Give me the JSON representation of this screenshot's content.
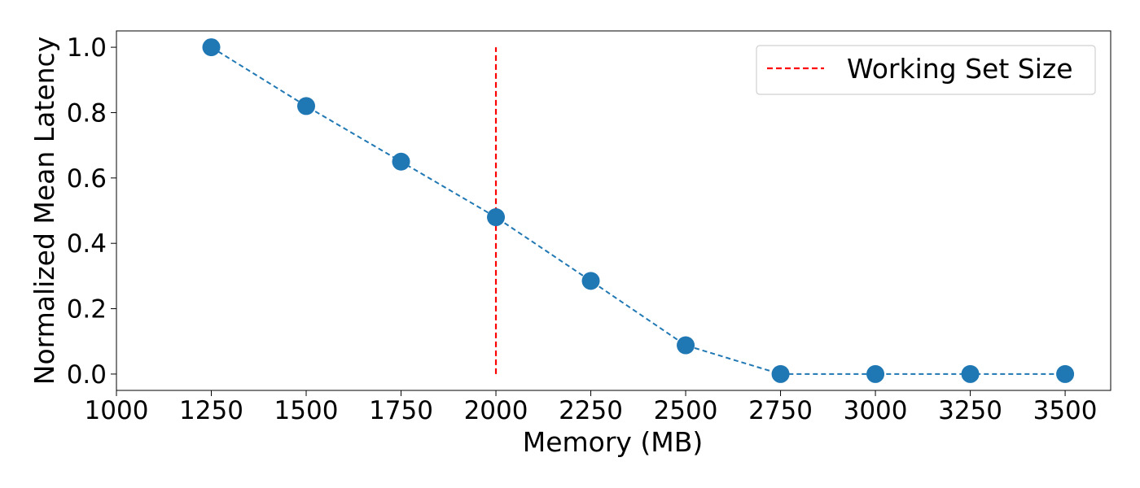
{
  "chart_data": {
    "type": "line",
    "title": "",
    "xlabel": "Memory (MB)",
    "ylabel": "Normalized Mean Latency",
    "xlim": [
      1000,
      3620
    ],
    "ylim": [
      -0.05,
      1.05
    ],
    "x_ticks": [
      1000,
      1250,
      1500,
      1750,
      2000,
      2250,
      2500,
      2750,
      3000,
      3250,
      3500
    ],
    "x_tick_labels": [
      "1000",
      "1250",
      "1500",
      "1750",
      "2000",
      "2250",
      "2500",
      "2750",
      "3000",
      "3250",
      "3500"
    ],
    "y_ticks": [
      0.0,
      0.2,
      0.4,
      0.6,
      0.8,
      1.0
    ],
    "y_tick_labels": [
      "0.0",
      "0.2",
      "0.4",
      "0.6",
      "0.8",
      "1.0"
    ],
    "grid": false,
    "series": [
      {
        "x": [
          1250,
          1500,
          1750,
          2000,
          2250,
          2500,
          2750,
          3000,
          3250,
          3500
        ],
        "y": [
          1.0,
          0.82,
          0.65,
          0.48,
          0.285,
          0.088,
          0.0,
          0.0,
          0.0,
          0.0
        ],
        "color": "#1f77b4",
        "line_style": "dashed",
        "marker": "circle"
      }
    ],
    "reference_lines": [
      {
        "orientation": "vertical",
        "x": 2000,
        "y_range": [
          0.0,
          1.0
        ],
        "color": "#ff0000",
        "line_style": "dashed",
        "label": "Working Set Size"
      }
    ],
    "legend": {
      "placement": "top-right",
      "entries": [
        "Working Set Size"
      ]
    }
  }
}
